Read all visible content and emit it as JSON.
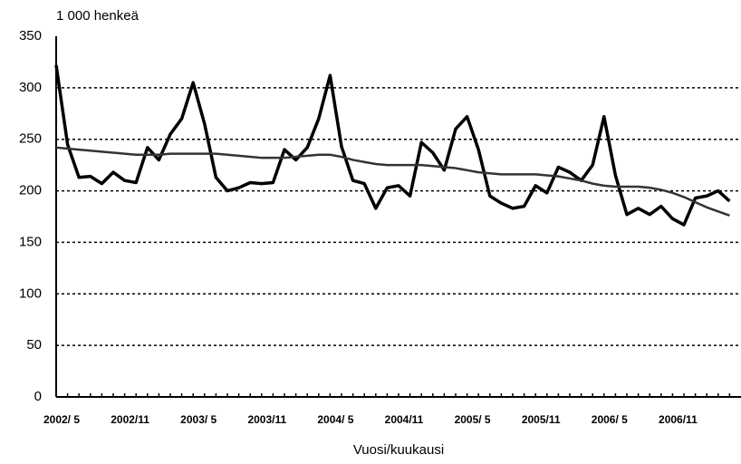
{
  "chart_data": {
    "type": "line",
    "y_axis_label": "1 000 henkeä",
    "x_axis_label": "Vuosi/kuukausi",
    "categories": [
      "2002/ 5",
      null,
      null,
      null,
      null,
      null,
      "2002/11",
      null,
      null,
      null,
      null,
      null,
      "2003/ 5",
      null,
      null,
      null,
      null,
      null,
      "2003/11",
      null,
      null,
      null,
      null,
      null,
      "2004/ 5",
      null,
      null,
      null,
      null,
      null,
      "2004/11",
      null,
      null,
      null,
      null,
      null,
      "2005/ 5",
      null,
      null,
      null,
      null,
      null,
      "2005/11",
      null,
      null,
      null,
      null,
      null,
      "2006/ 5",
      null,
      null,
      null,
      null,
      null,
      "2006/11",
      null,
      null,
      null,
      null,
      null
    ],
    "series": [
      {
        "color": "#000000",
        "values": [
          322,
          245,
          213,
          214,
          207,
          218,
          210,
          208,
          242,
          230,
          255,
          270,
          305,
          265,
          213,
          200,
          203,
          208,
          207,
          208,
          240,
          230,
          242,
          270,
          312,
          243,
          210,
          207,
          183,
          203,
          205,
          195,
          247,
          237,
          220,
          260,
          272,
          240,
          195,
          188,
          183,
          185,
          205,
          198,
          223,
          218,
          210,
          225,
          272,
          215,
          177,
          183,
          177,
          185,
          173,
          167,
          193,
          195,
          200,
          190
        ]
      },
      {
        "color": "#333333",
        "values": [
          242,
          241,
          240,
          239,
          238,
          237,
          236,
          235,
          235,
          235,
          236,
          236,
          236,
          236,
          236,
          235,
          234,
          233,
          232,
          232,
          232,
          233,
          234,
          235,
          235,
          233,
          230,
          228,
          226,
          225,
          225,
          225,
          225,
          224,
          223,
          222,
          220,
          218,
          217,
          216,
          216,
          216,
          216,
          215,
          214,
          212,
          210,
          207,
          205,
          204,
          204,
          204,
          203,
          201,
          198,
          194,
          189,
          184,
          180,
          176
        ]
      }
    ],
    "ylim": [
      0,
      350
    ],
    "yticks": [
      0,
      50,
      100,
      150,
      200,
      250,
      300,
      350
    ],
    "grid": true
  }
}
